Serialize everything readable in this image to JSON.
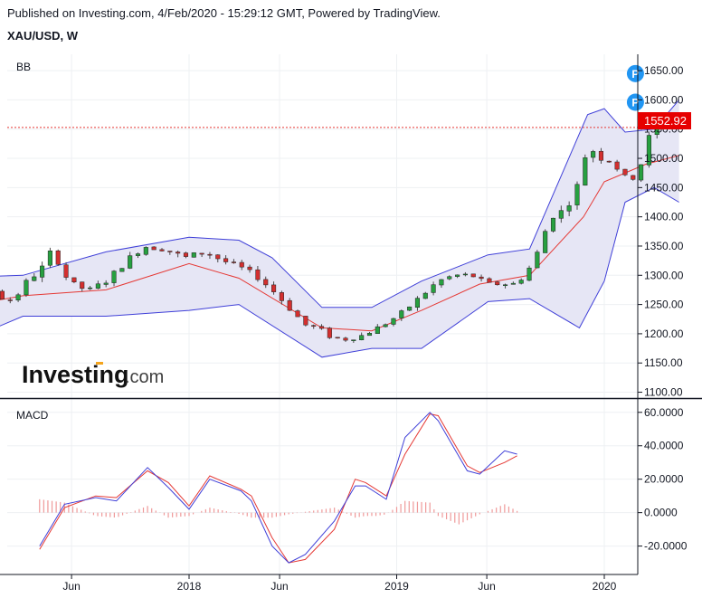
{
  "header": {
    "published": "Published on Investing.com, 4/Feb/2020 - 15:29:12 GMT, Powered by TradingView.",
    "symbol": "XAU/USD, W"
  },
  "logo": {
    "bold": "Investing",
    "suffix": ".com"
  },
  "colors": {
    "up": "#27a040",
    "down": "#d32f2f",
    "bb_band": "#3f3fd8",
    "bb_basis": "#e53935",
    "bb_fill": "#e6e6f5",
    "macd_line": "#3f3fd8",
    "signal_line": "#e53935",
    "hist": "#ef9a9a",
    "price_line": "#e53935",
    "marker": "#2196f3"
  },
  "chart_data": [
    {
      "type": "candlestick",
      "pane_label": "BB",
      "price_label": "1552.92",
      "current_price": 1552.92,
      "y_ticks": [
        "1650.00",
        "1600.00",
        "1550.00",
        "1500.00",
        "1450.00",
        "1400.00",
        "1350.00",
        "1300.00",
        "1250.00",
        "1200.00",
        "1150.00",
        "1100.00"
      ],
      "ylim": [
        1090,
        1678
      ],
      "x_ticks": [
        "Jun",
        "2018",
        "Jun",
        "2019",
        "Jun",
        "2020"
      ],
      "markers": [
        {
          "label": "P",
          "x": 1.075,
          "price": 1645
        },
        {
          "label": "P",
          "x": 1.075,
          "price": 1596
        }
      ],
      "anchors": [
        [
          -0.7,
          1242,
          5
        ],
        [
          -0.66,
          1265,
          7
        ],
        [
          -0.62,
          1290,
          6
        ],
        [
          -0.58,
          1270,
          7
        ],
        [
          -0.54,
          1250,
          6
        ],
        [
          -0.5,
          1270,
          6
        ],
        [
          -0.47,
          1275,
          6
        ],
        [
          -0.44,
          1255,
          6
        ],
        [
          -0.42,
          1260,
          6
        ],
        [
          -0.39,
          1290,
          7
        ],
        [
          -0.35,
          1315,
          8
        ],
        [
          -0.33,
          1345,
          6
        ],
        [
          -0.3,
          1300,
          6
        ],
        [
          -0.27,
          1280,
          5
        ],
        [
          -0.24,
          1275,
          5
        ],
        [
          -0.2,
          1290,
          6
        ],
        [
          -0.15,
          1325,
          7
        ],
        [
          -0.11,
          1350,
          7
        ],
        [
          -0.06,
          1345,
          6
        ],
        [
          -0.01,
          1330,
          7
        ],
        [
          0.04,
          1340,
          7
        ],
        [
          0.08,
          1325,
          6
        ],
        [
          0.12,
          1315,
          5
        ],
        [
          0.16,
          1300,
          6
        ],
        [
          0.2,
          1275,
          6
        ],
        [
          0.24,
          1245,
          6
        ],
        [
          0.28,
          1215,
          6
        ],
        [
          0.31,
          1210,
          6
        ],
        [
          0.34,
          1195,
          5
        ],
        [
          0.37,
          1190,
          5
        ],
        [
          0.41,
          1195,
          5
        ],
        [
          0.44,
          1205,
          5
        ],
        [
          0.48,
          1220,
          5
        ],
        [
          0.52,
          1240,
          5
        ],
        [
          0.56,
          1265,
          6
        ],
        [
          0.6,
          1290,
          6
        ],
        [
          0.64,
          1300,
          6
        ],
        [
          0.68,
          1300,
          5
        ],
        [
          0.72,
          1285,
          5
        ],
        [
          0.75,
          1285,
          5
        ],
        [
          0.78,
          1285,
          5
        ],
        [
          0.81,
          1300,
          6
        ],
        [
          0.84,
          1340,
          7
        ],
        [
          0.87,
          1400,
          7
        ],
        [
          0.9,
          1410,
          8
        ],
        [
          0.93,
          1440,
          8
        ],
        [
          0.96,
          1520,
          8
        ],
        [
          0.98,
          1510,
          8
        ],
        [
          1.0,
          1495,
          7
        ],
        [
          1.02,
          1500,
          7
        ],
        [
          1.04,
          1470,
          6
        ],
        [
          1.06,
          1465,
          6
        ],
        [
          1.08,
          1470,
          6
        ],
        [
          1.1,
          1520,
          8
        ],
        [
          1.12,
          1560,
          8
        ],
        [
          1.14,
          1565,
          9
        ],
        [
          1.16,
          1580,
          9
        ],
        [
          1.18,
          1555,
          10
        ]
      ],
      "bollinger": {
        "basis": [
          [
            -0.72,
            1225
          ],
          [
            -0.4,
            1265
          ],
          [
            -0.2,
            1275
          ],
          [
            0.0,
            1320
          ],
          [
            0.12,
            1295
          ],
          [
            0.32,
            1210
          ],
          [
            0.44,
            1205
          ],
          [
            0.56,
            1240
          ],
          [
            0.7,
            1285
          ],
          [
            0.82,
            1300
          ],
          [
            0.95,
            1400
          ],
          [
            1.0,
            1460
          ],
          [
            1.1,
            1490
          ],
          [
            1.18,
            1505
          ]
        ],
        "upper": [
          [
            -0.72,
            1303
          ],
          [
            -0.6,
            1295
          ],
          [
            -0.4,
            1300
          ],
          [
            -0.2,
            1340
          ],
          [
            0.0,
            1365
          ],
          [
            0.12,
            1360
          ],
          [
            0.2,
            1330
          ],
          [
            0.32,
            1245
          ],
          [
            0.44,
            1245
          ],
          [
            0.56,
            1290
          ],
          [
            0.72,
            1335
          ],
          [
            0.82,
            1345
          ],
          [
            0.96,
            1575
          ],
          [
            1.0,
            1585
          ],
          [
            1.05,
            1545
          ],
          [
            1.12,
            1550
          ],
          [
            1.18,
            1600
          ]
        ],
        "lower": [
          [
            -0.72,
            1115
          ],
          [
            -0.6,
            1170
          ],
          [
            -0.4,
            1230
          ],
          [
            -0.2,
            1230
          ],
          [
            0.0,
            1240
          ],
          [
            0.12,
            1250
          ],
          [
            0.32,
            1160
          ],
          [
            0.44,
            1175
          ],
          [
            0.56,
            1175
          ],
          [
            0.72,
            1255
          ],
          [
            0.82,
            1260
          ],
          [
            0.94,
            1210
          ],
          [
            1.0,
            1290
          ],
          [
            1.05,
            1425
          ],
          [
            1.12,
            1450
          ],
          [
            1.18,
            1425
          ]
        ]
      }
    },
    {
      "type": "line",
      "pane_label": "MACD",
      "y_ticks": [
        "60.0000",
        "40.0000",
        "20.0000",
        "0.0000",
        "-20.0000"
      ],
      "ylim": [
        -37,
        68
      ],
      "series": [
        {
          "role": "macd",
          "points": [
            [
              -0.72,
              -20
            ],
            [
              -0.6,
              5
            ],
            [
              -0.45,
              9
            ],
            [
              -0.35,
              7
            ],
            [
              -0.2,
              27
            ],
            [
              -0.1,
              15
            ],
            [
              0.0,
              2
            ],
            [
              0.1,
              20
            ],
            [
              0.25,
              13
            ],
            [
              0.3,
              7
            ],
            [
              0.4,
              -20
            ],
            [
              0.48,
              -30
            ],
            [
              0.56,
              -25
            ],
            [
              0.7,
              -5
            ],
            [
              0.8,
              16
            ],
            [
              0.85,
              16
            ],
            [
              0.9,
              12
            ],
            [
              0.95,
              8
            ],
            [
              1.04,
              45
            ],
            [
              1.16,
              60
            ],
            [
              1.2,
              55
            ],
            [
              1.34,
              25
            ],
            [
              1.4,
              23
            ],
            [
              1.52,
              37
            ],
            [
              1.58,
              35
            ]
          ]
        },
        {
          "role": "signal",
          "points": [
            [
              -0.72,
              -22
            ],
            [
              -0.6,
              3
            ],
            [
              -0.45,
              10
            ],
            [
              -0.35,
              9
            ],
            [
              -0.2,
              25
            ],
            [
              -0.1,
              18
            ],
            [
              0.0,
              4
            ],
            [
              0.1,
              22
            ],
            [
              0.25,
              14
            ],
            [
              0.3,
              10
            ],
            [
              0.4,
              -15
            ],
            [
              0.48,
              -30
            ],
            [
              0.56,
              -28
            ],
            [
              0.7,
              -10
            ],
            [
              0.8,
              20
            ],
            [
              0.85,
              18
            ],
            [
              0.9,
              14
            ],
            [
              0.95,
              10
            ],
            [
              1.04,
              35
            ],
            [
              1.16,
              59
            ],
            [
              1.2,
              58
            ],
            [
              1.34,
              28
            ],
            [
              1.4,
              24
            ],
            [
              1.52,
              30
            ],
            [
              1.58,
              34
            ]
          ]
        },
        {
          "role": "histogram",
          "points": [
            [
              -0.72,
              8
            ],
            [
              -0.6,
              6
            ],
            [
              -0.45,
              -2
            ],
            [
              -0.35,
              -3
            ],
            [
              -0.2,
              4
            ],
            [
              -0.1,
              -3
            ],
            [
              0.0,
              -2
            ],
            [
              0.1,
              3
            ],
            [
              0.25,
              -1
            ],
            [
              0.3,
              -3
            ],
            [
              0.4,
              -3
            ],
            [
              0.48,
              -1
            ],
            [
              0.56,
              0.5
            ],
            [
              0.7,
              3
            ],
            [
              0.8,
              -3
            ],
            [
              0.85,
              -2
            ],
            [
              0.9,
              -2
            ],
            [
              0.95,
              -1
            ],
            [
              1.04,
              7
            ],
            [
              1.16,
              6
            ],
            [
              1.2,
              -2
            ],
            [
              1.3,
              -7
            ],
            [
              1.4,
              -1
            ],
            [
              1.52,
              5
            ],
            [
              1.58,
              1
            ]
          ]
        }
      ]
    }
  ]
}
